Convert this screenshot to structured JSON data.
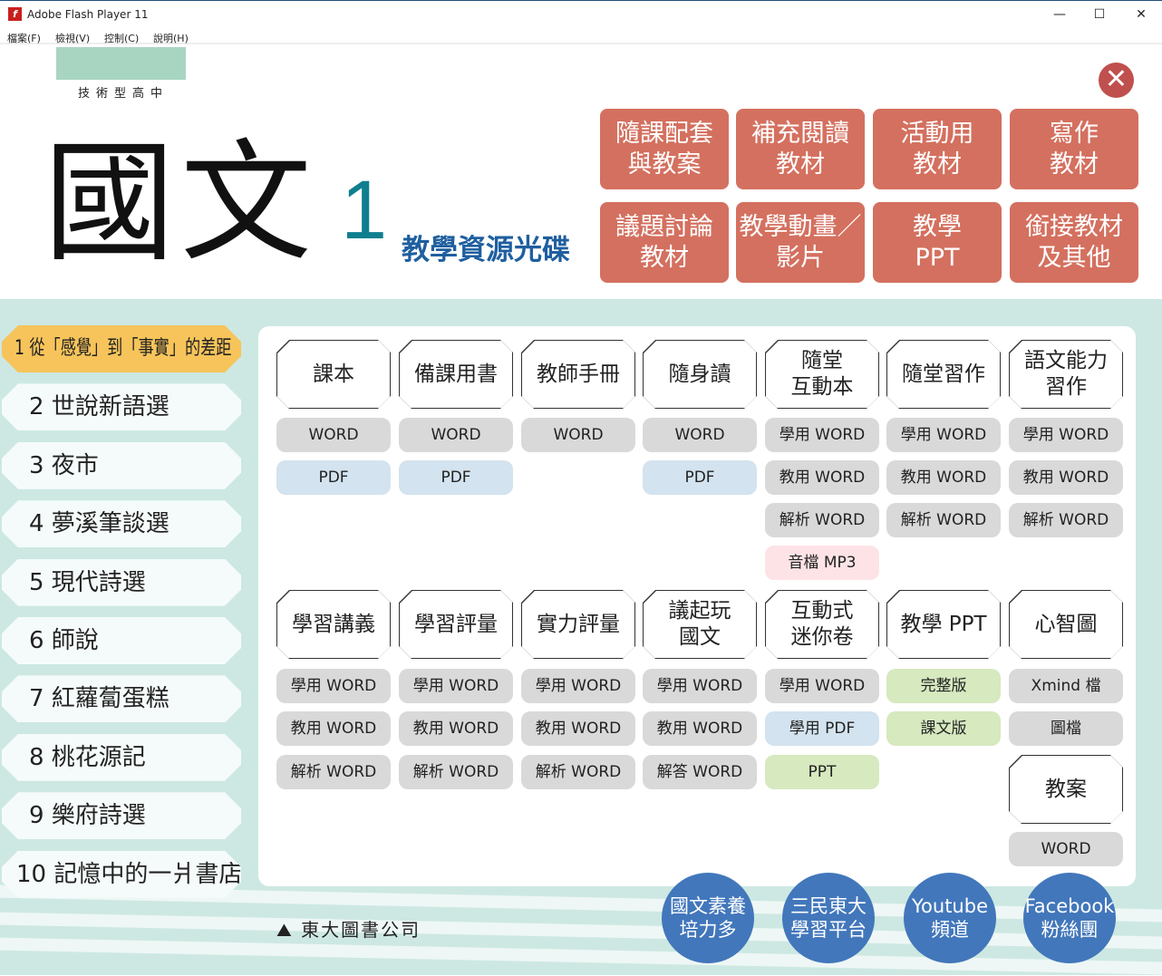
{
  "window": {
    "title": "Adobe Flash Player 11",
    "menu": [
      "檔案(F)",
      "檢視(V)",
      "控制(C)",
      "說明(H)"
    ]
  },
  "header": {
    "school": "技術型高中",
    "title": "國文",
    "number": "1",
    "subtitle": "教學資源光碟"
  },
  "top_buttons": [
    "隨課配套\n與教案",
    "補充閱讀\n教材",
    "活動用\n教材",
    "寫作\n教材",
    "議題討論\n教材",
    "教學動畫／\n影片",
    "教學\nPPT",
    "銜接教材\n及其他"
  ],
  "lessons": [
    "1 從「感覺」到「事實」的差距",
    "2 世說新語選",
    "3 夜市",
    "4 夢溪筆談選",
    "5 現代詩選",
    "6 師說",
    "7 紅蘿蔔蛋糕",
    "8 桃花源記",
    "9 樂府詩選",
    "10 記憶中的一爿書店"
  ],
  "active_lesson": 0,
  "colors": {
    "gray": "#d9d9d9",
    "blue": "#d3e3ef",
    "pink": "#fde3e6",
    "green": "#d6e9bf",
    "accent": "#d4705f",
    "circle": "#4277bb",
    "active": "#f6c45a"
  },
  "resources_row1": [
    {
      "title": "課本",
      "files": [
        {
          "label": "WORD",
          "color": "gray"
        },
        {
          "label": "PDF",
          "color": "blue"
        }
      ]
    },
    {
      "title": "備課用書",
      "files": [
        {
          "label": "WORD",
          "color": "gray"
        },
        {
          "label": "PDF",
          "color": "blue"
        }
      ]
    },
    {
      "title": "教師手冊",
      "files": [
        {
          "label": "WORD",
          "color": "gray"
        }
      ]
    },
    {
      "title": "隨身讀",
      "files": [
        {
          "label": "WORD",
          "color": "gray"
        },
        {
          "label": "PDF",
          "color": "blue"
        }
      ]
    },
    {
      "title": "隨堂\n互動本",
      "files": [
        {
          "label": "學用 WORD",
          "color": "gray"
        },
        {
          "label": "教用 WORD",
          "color": "gray"
        },
        {
          "label": "解析 WORD",
          "color": "gray"
        },
        {
          "label": "音檔 MP3",
          "color": "pink"
        }
      ]
    },
    {
      "title": "隨堂習作",
      "files": [
        {
          "label": "學用 WORD",
          "color": "gray"
        },
        {
          "label": "教用 WORD",
          "color": "gray"
        },
        {
          "label": "解析 WORD",
          "color": "gray"
        }
      ]
    },
    {
      "title": "語文能力\n習作",
      "files": [
        {
          "label": "學用 WORD",
          "color": "gray"
        },
        {
          "label": "教用 WORD",
          "color": "gray"
        },
        {
          "label": "解析 WORD",
          "color": "gray"
        }
      ]
    }
  ],
  "resources_row2": [
    {
      "title": "學習講義",
      "files": [
        {
          "label": "學用 WORD",
          "color": "gray"
        },
        {
          "label": "教用 WORD",
          "color": "gray"
        },
        {
          "label": "解析 WORD",
          "color": "gray"
        }
      ]
    },
    {
      "title": "學習評量",
      "files": [
        {
          "label": "學用 WORD",
          "color": "gray"
        },
        {
          "label": "教用 WORD",
          "color": "gray"
        },
        {
          "label": "解析 WORD",
          "color": "gray"
        }
      ]
    },
    {
      "title": "實力評量",
      "files": [
        {
          "label": "學用 WORD",
          "color": "gray"
        },
        {
          "label": "教用 WORD",
          "color": "gray"
        },
        {
          "label": "解析 WORD",
          "color": "gray"
        }
      ]
    },
    {
      "title": "議起玩\n國文",
      "files": [
        {
          "label": "學用 WORD",
          "color": "gray"
        },
        {
          "label": "教用 WORD",
          "color": "gray"
        },
        {
          "label": "解答 WORD",
          "color": "gray"
        }
      ]
    },
    {
      "title": "互動式\n迷你卷",
      "files": [
        {
          "label": "學用 WORD",
          "color": "gray"
        },
        {
          "label": "學用 PDF",
          "color": "blue"
        },
        {
          "label": "PPT",
          "color": "green"
        }
      ]
    },
    {
      "title": "教學 PPT",
      "files": [
        {
          "label": "完整版",
          "color": "green"
        },
        {
          "label": "課文版",
          "color": "green"
        }
      ]
    },
    {
      "title": "心智圖",
      "files": [
        {
          "label": "Xmind 檔",
          "color": "gray"
        },
        {
          "label": "圖檔",
          "color": "gray"
        }
      ]
    }
  ],
  "lesson_plan": {
    "title": "教案",
    "files": [
      {
        "label": "WORD",
        "color": "gray"
      }
    ]
  },
  "footer": {
    "publisher": "東大圖書公司",
    "links": [
      "國文素養\n培力多",
      "三民東大\n學習平台",
      "Youtube\n頻道",
      "Facebook\n粉絲團"
    ]
  }
}
